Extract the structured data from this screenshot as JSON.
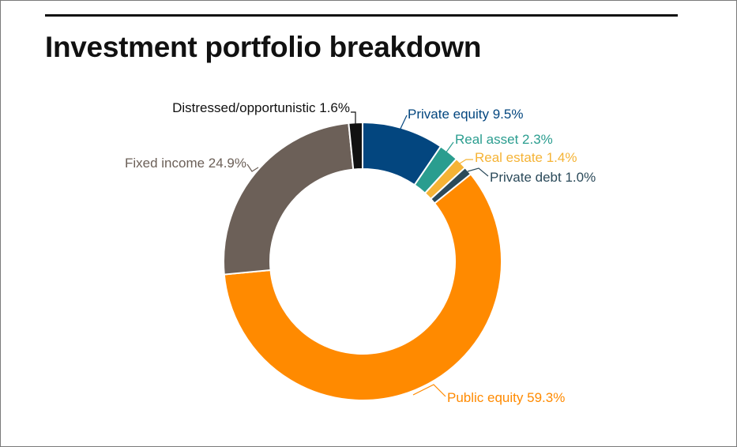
{
  "header": {
    "title": "Investment portfolio breakdown"
  },
  "chart_data": {
    "type": "pie",
    "donut": true,
    "title": "Investment portfolio breakdown",
    "categories": [
      "Private equity",
      "Real asset",
      "Real estate",
      "Private debt",
      "Public equity",
      "Fixed income",
      "Distressed/opportunistic"
    ],
    "values": [
      9.5,
      2.3,
      1.4,
      1.0,
      59.3,
      24.9,
      1.6
    ],
    "unit": "%",
    "colors": [
      "#03467f",
      "#2a9d8f",
      "#f5b335",
      "#2b4a5a",
      "#ff8a00",
      "#6c6058",
      "#111111"
    ],
    "labels": [
      "Private equity 9.5%",
      "Real asset 2.3%",
      "Real estate 1.4%",
      "Private debt 1.0%",
      "Public equity 59.3%",
      "Fixed income 24.9%",
      "Distressed/opportunistic 1.6%"
    ],
    "label_colors": [
      "#03467f",
      "#2a9d8f",
      "#f5b335",
      "#2b4a5a",
      "#ff8a00",
      "#6c6058",
      "#111111"
    ],
    "legend": "none"
  }
}
